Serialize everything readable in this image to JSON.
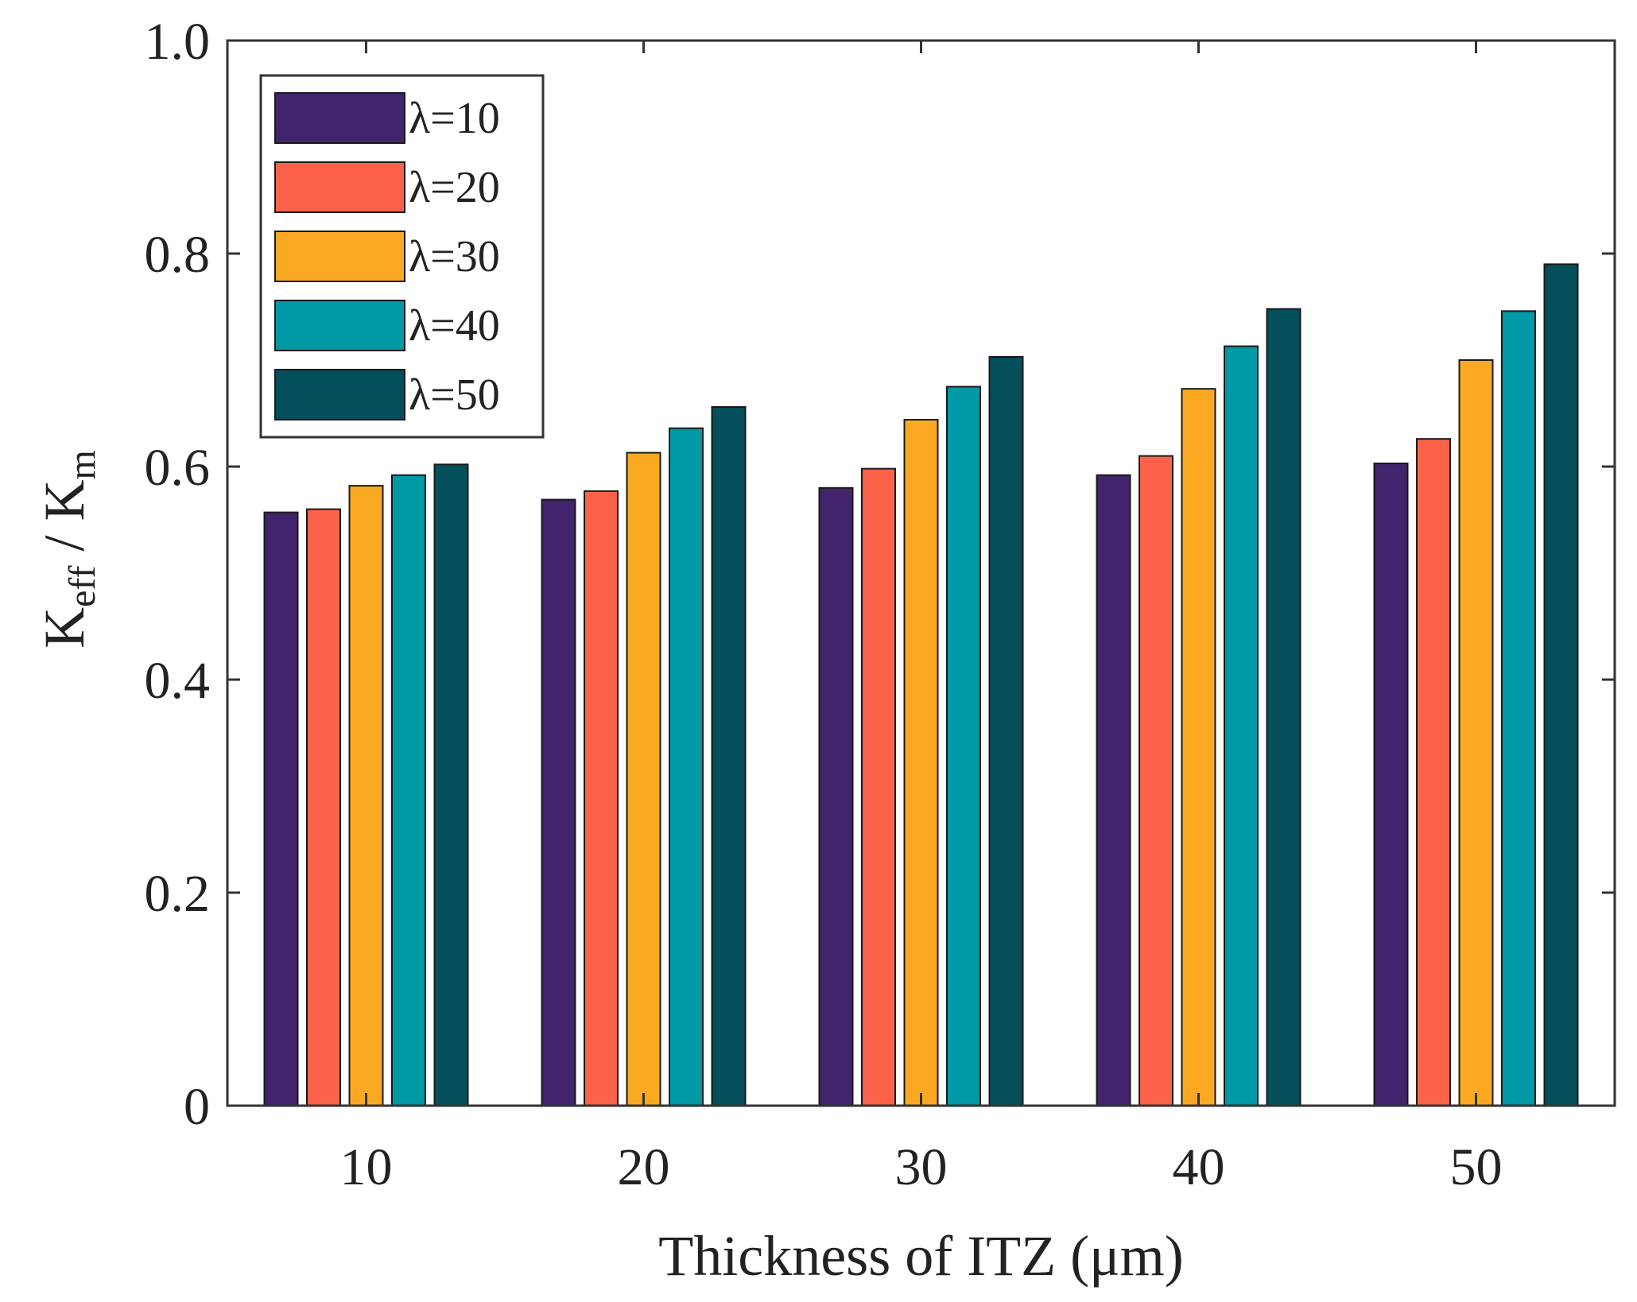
{
  "chart_data": {
    "type": "bar",
    "title": "",
    "xlabel": "Thickness of ITZ (μm)",
    "ylabel": {
      "base1": "K",
      "sub1": "eff",
      "sep": " / ",
      "base2": "K",
      "sub2": "m"
    },
    "categories": [
      "10",
      "20",
      "30",
      "40",
      "50"
    ],
    "ylim": [
      0,
      1.0
    ],
    "yticks": [
      0,
      0.2,
      0.4,
      0.6,
      0.8,
      1.0
    ],
    "ytick_labels": [
      "0",
      "0.2",
      "0.4",
      "0.6",
      "0.8",
      "1.0"
    ],
    "grid": false,
    "legend_position": "top-left",
    "series": [
      {
        "name": "λ=10",
        "color": "#41246b",
        "values": [
          0.557,
          0.569,
          0.58,
          0.592,
          0.603
        ]
      },
      {
        "name": "λ=20",
        "color": "#fc6247",
        "values": [
          0.56,
          0.577,
          0.598,
          0.61,
          0.626
        ]
      },
      {
        "name": "λ=30",
        "color": "#fba922",
        "values": [
          0.582,
          0.613,
          0.644,
          0.673,
          0.7
        ]
      },
      {
        "name": "λ=40",
        "color": "#0099a6",
        "values": [
          0.592,
          0.636,
          0.675,
          0.713,
          0.746
        ]
      },
      {
        "name": "λ=50",
        "color": "#034f5b",
        "values": [
          0.602,
          0.656,
          0.703,
          0.748,
          0.79
        ]
      }
    ]
  }
}
